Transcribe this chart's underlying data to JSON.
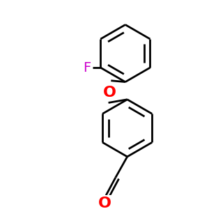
{
  "bg_color": "#ffffff",
  "bond_color": "#000000",
  "F_color": "#cc00cc",
  "O_color": "#ff0000",
  "label_font_size": 14,
  "line_width": 2.0,
  "figsize": [
    3.0,
    3.0
  ],
  "dpi": 100,
  "F_label": "F",
  "O_label": "O"
}
